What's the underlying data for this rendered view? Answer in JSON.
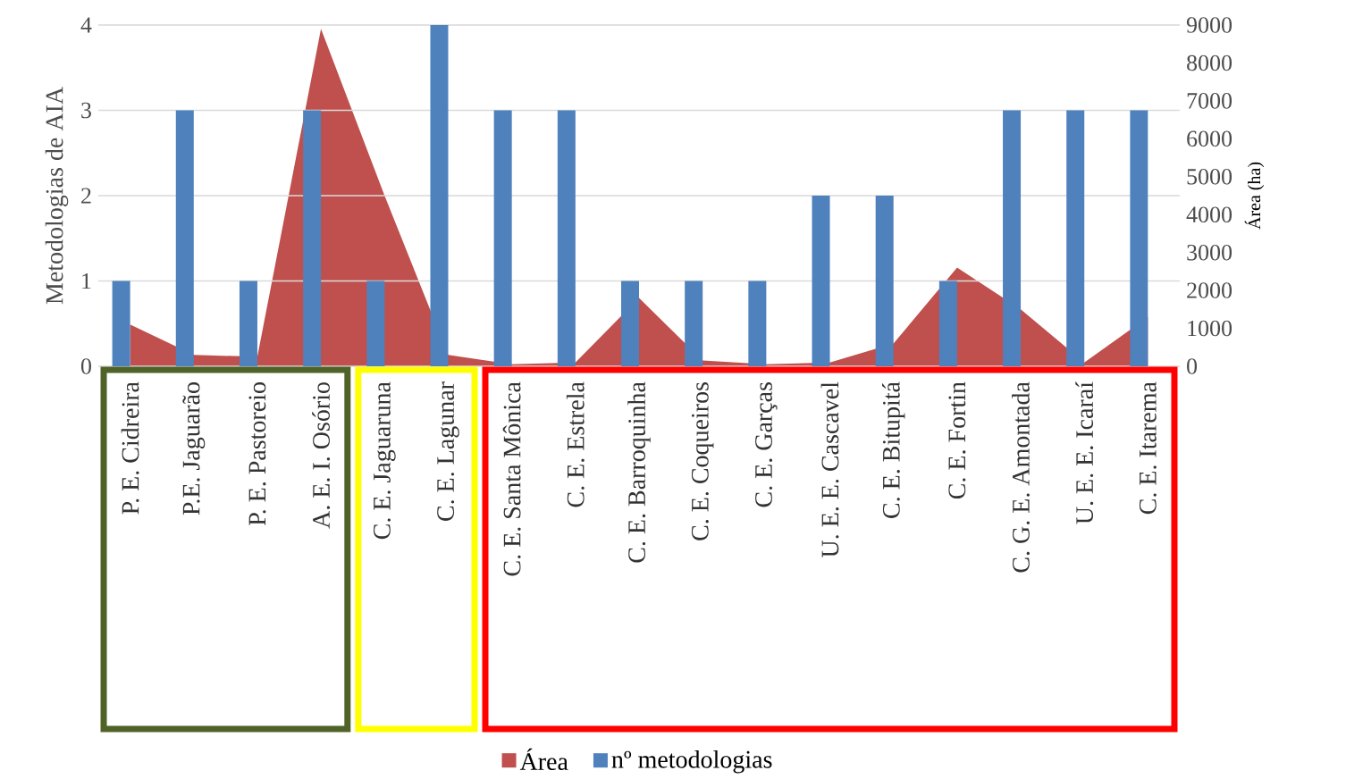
{
  "chart_data": {
    "type": "bar",
    "ylabel": "Metodologias de AIA",
    "y2label": "Área (ha)",
    "categories": [
      "P. E. Cidreira",
      "P.E. Jaguarão",
      "P. E. Pastoreio",
      "A. E. I. Osório",
      "C. E. Jaguaruna",
      "C. E. Lagunar",
      "C. E. Santa Mônica",
      "C. E. Estrela",
      "C. E. Barroquinha",
      "C. E. Coqueiros",
      "C. E. Garças",
      "U. E. E. Cascavel",
      "C. E. Bitupitá",
      "C. E. Fortin",
      "C. G. E. Amontada",
      "U. E. E. Icaraí",
      "C. E. Itarema"
    ],
    "series": [
      {
        "name": "Área",
        "type": "area",
        "axis": "y2",
        "color": "#c0504d",
        "values": [
          1100,
          300,
          250,
          8900,
          4500,
          300,
          50,
          100,
          1800,
          150,
          50,
          100,
          600,
          2600,
          1500,
          100,
          1300
        ]
      },
      {
        "name": "nº metodologias",
        "color": "#4f81bd",
        "values": [
          1,
          3,
          1,
          3,
          1,
          4,
          3,
          3,
          1,
          1,
          1,
          2,
          2,
          1,
          3,
          3,
          3
        ]
      }
    ],
    "ylim": [
      0,
      4
    ],
    "yticks": [
      0,
      1,
      2,
      3,
      4
    ],
    "y2lim": [
      0,
      9000
    ],
    "y2ticks": [
      0,
      1000,
      2000,
      3000,
      4000,
      5000,
      6000,
      7000,
      8000,
      9000
    ],
    "grid": "y",
    "legend": "bottom"
  }
}
